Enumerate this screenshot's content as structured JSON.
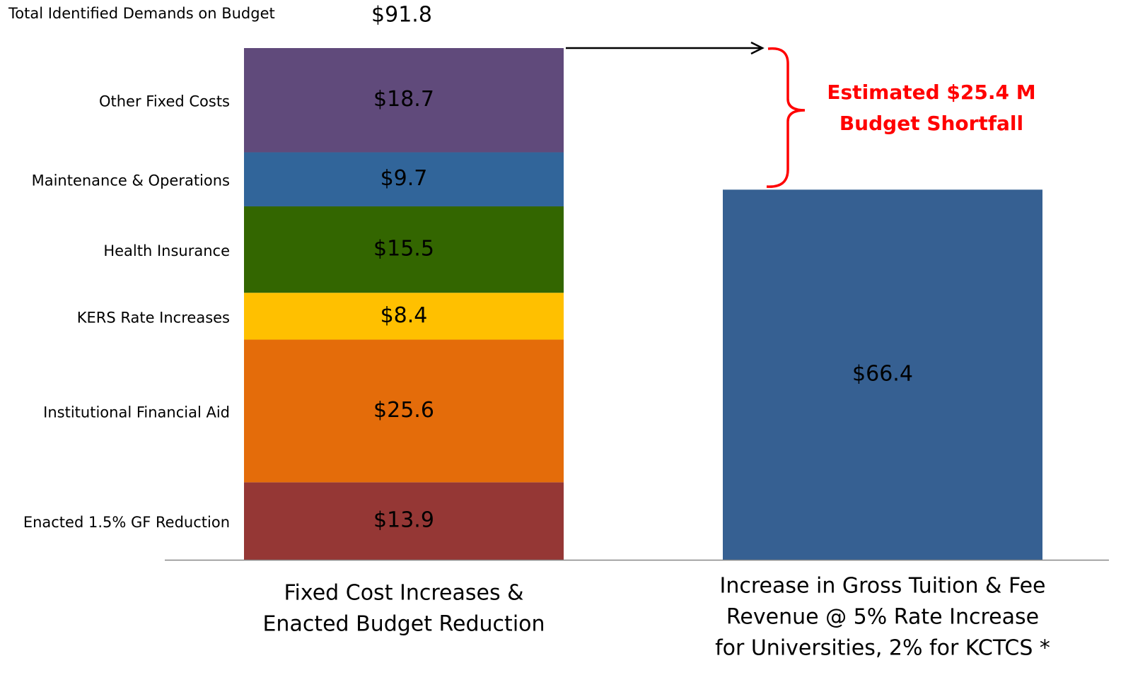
{
  "chart_data": {
    "type": "stacked_bar",
    "categories": [
      [
        "Fixed Cost Increases &",
        "Enacted Budget Reduction"
      ],
      [
        "Increase in Gross Tuition & Fee",
        "Revenue @ 5% Rate Increase",
        "for Universities, 2% for KCTCS *"
      ]
    ],
    "series": [
      {
        "name": "Enacted 1.5% GF Reduction",
        "color": "#953735",
        "values": [
          13.9,
          null
        ],
        "value_labels": [
          "$13.9",
          null
        ]
      },
      {
        "name": "Institutional Financial Aid",
        "color": "#e46c0a",
        "values": [
          25.6,
          null
        ],
        "value_labels": [
          "$25.6",
          null
        ]
      },
      {
        "name": "KERS Rate Increases",
        "color": "#ffc000",
        "values": [
          8.4,
          null
        ],
        "value_labels": [
          "$8.4",
          null
        ]
      },
      {
        "name": "Health Insurance",
        "color": "#336600",
        "values": [
          15.5,
          null
        ],
        "value_labels": [
          "$15.5",
          null
        ]
      },
      {
        "name": "Maintenance & Operations",
        "color": "#31659a",
        "values": [
          9.7,
          null
        ],
        "value_labels": [
          "$9.7",
          null
        ]
      },
      {
        "name": "Other Fixed Costs",
        "color": "#604a7b",
        "values": [
          18.7,
          null
        ],
        "value_labels": [
          "$18.7",
          null
        ]
      },
      {
        "color": "#366092",
        "values": [
          null,
          66.4
        ],
        "value_labels": [
          null,
          "$66.4"
        ]
      }
    ],
    "total": {
      "label": "Total Identified Demands on Budget",
      "value": 91.8,
      "value_label": "$91.8"
    },
    "annotation": [
      "Estimated $25.4 M",
      "Budget Shortfall"
    ],
    "ylim": [
      0,
      91.8
    ]
  }
}
